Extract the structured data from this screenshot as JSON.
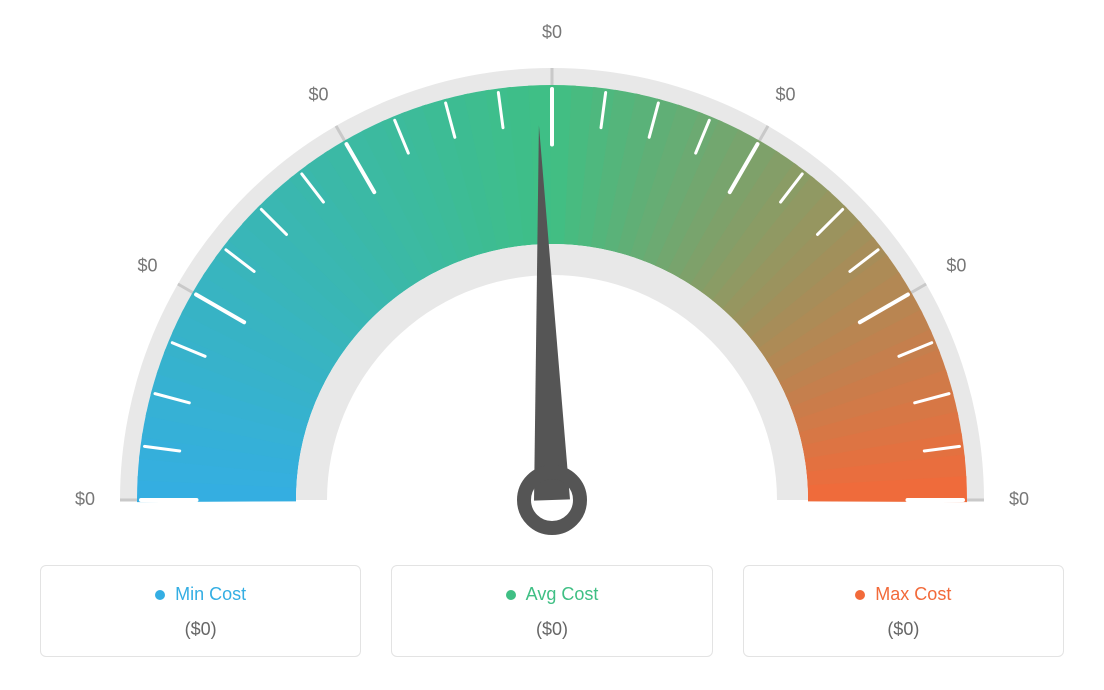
{
  "gauge": {
    "type": "gauge",
    "outer_bg": "#e8e8e8",
    "inner_ring": "#ffffff",
    "tick_labels": [
      "$0",
      "$0",
      "$0",
      "$0",
      "$0",
      "$0",
      "$0"
    ],
    "tick_label_color": "#777777",
    "tick_label_fontsize": 18,
    "major_tick_color": "#c9c9c9",
    "minor_tick_color": "#ffffff",
    "band_colors": {
      "start": "#34aee3",
      "mid": "#3fbf84",
      "end": "#f26a3a"
    },
    "needle_color": "#555555",
    "needle_angle_deg": 92,
    "canvas_bg": "#ffffff",
    "aspect": "semicircle",
    "outer_radius": 432,
    "band_outer_radius": 415,
    "band_inner_radius": 256,
    "inner_ring_outer_radius": 256,
    "inner_ring_inner_radius": 225,
    "needle_hub_radius": 28
  },
  "legend": {
    "cards": [
      {
        "label": "Min Cost",
        "value": "($0)",
        "color": "#34aee3"
      },
      {
        "label": "Avg Cost",
        "value": "($0)",
        "color": "#3fbf84"
      },
      {
        "label": "Max Cost",
        "value": "($0)",
        "color": "#f26a3a"
      }
    ],
    "border_color": "#e3e3e3",
    "border_radius": 6,
    "label_fontsize": 18,
    "value_fontsize": 18,
    "value_color": "#666666"
  }
}
